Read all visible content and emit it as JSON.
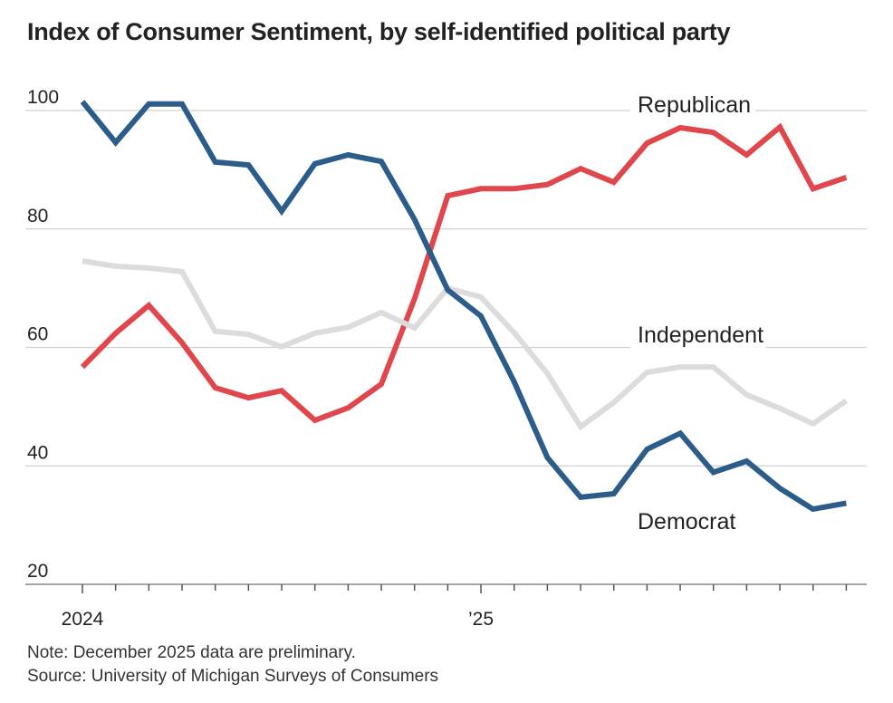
{
  "chart_data": {
    "type": "line",
    "title": "Index of Consumer Sentiment, by self-identified political party",
    "x": [
      "2024-01",
      "2024-02",
      "2024-03",
      "2024-04",
      "2024-05",
      "2024-06",
      "2024-07",
      "2024-08",
      "2024-09",
      "2024-10",
      "2024-11",
      "2024-12",
      "2025-01",
      "2025-02",
      "2025-03",
      "2025-04",
      "2025-05",
      "2025-06",
      "2025-07",
      "2025-08",
      "2025-09",
      "2025-10",
      "2025-11",
      "2025-12"
    ],
    "x_tick_labels": [
      {
        "at": "2024-01",
        "label": "2024"
      },
      {
        "at": "2025-01",
        "label": "’25"
      }
    ],
    "ylim": [
      20,
      100
    ],
    "y_ticks": [
      20,
      40,
      60,
      80,
      100
    ],
    "grid": true,
    "series": [
      {
        "name": "Republican",
        "color": "#e0474c",
        "values": [
          56.7,
          62.4,
          67.1,
          60.8,
          53.2,
          51.5,
          52.7,
          47.7,
          49.8,
          53.8,
          68.2,
          85.6,
          86.8,
          86.8,
          87.5,
          90.2,
          87.9,
          94.5,
          97.1,
          96.3,
          92.5,
          97.2,
          86.8,
          88.7
        ]
      },
      {
        "name": "Independent",
        "color": "#dcdcdc",
        "values": [
          74.6,
          73.7,
          73.4,
          72.8,
          62.7,
          62.2,
          60.1,
          62.4,
          63.4,
          65.9,
          63.3,
          70.0,
          68.5,
          62.5,
          55.6,
          46.6,
          50.7,
          55.8,
          56.7,
          56.7,
          52.0,
          49.7,
          47.1,
          51.0
        ]
      },
      {
        "name": "Democrat",
        "color": "#2c5d8a",
        "values": [
          101.5,
          94.6,
          101.1,
          101.1,
          91.3,
          90.8,
          83.0,
          91.0,
          92.5,
          91.4,
          81.6,
          69.7,
          65.3,
          54.2,
          41.4,
          34.7,
          35.3,
          42.8,
          45.5,
          38.9,
          40.8,
          36.2,
          32.7,
          33.7
        ]
      }
    ],
    "note": "Note: December 2025 data are preliminary.",
    "source": "Source: University of Michigan Surveys of Consumers"
  }
}
